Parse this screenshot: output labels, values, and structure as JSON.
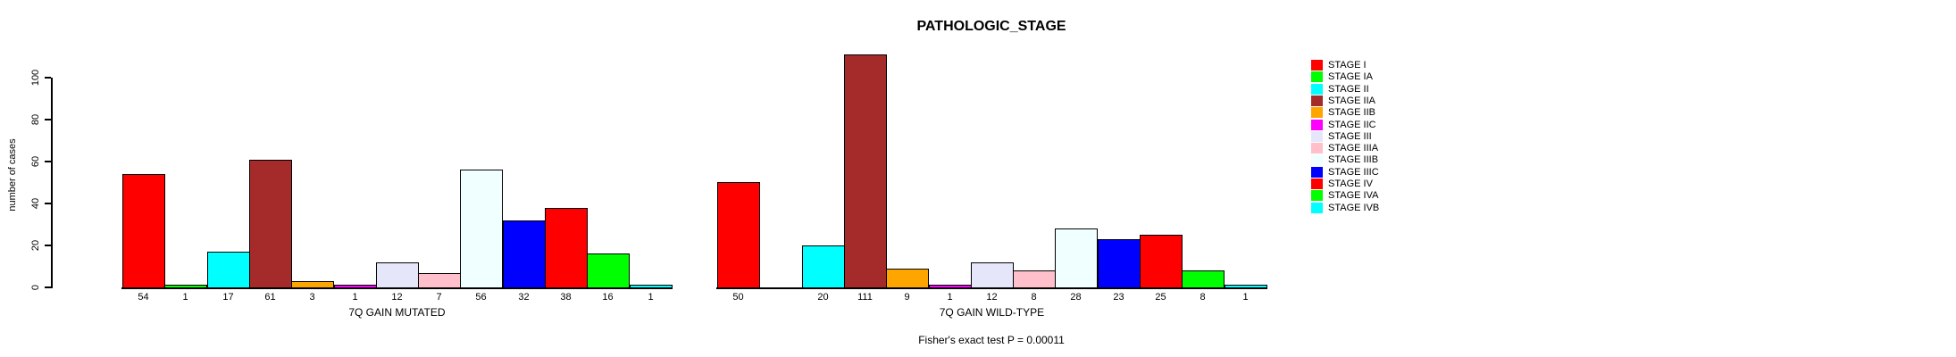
{
  "header": {
    "title": "PATHOLOGIC_STAGE"
  },
  "y_axis": {
    "label": "number of cases",
    "tick_labels": [
      "0",
      "20",
      "40",
      "60",
      "80",
      "100"
    ]
  },
  "footer": {
    "note": "Fisher's exact test P = 0.00011"
  },
  "legend": {
    "items": [
      {
        "label": "STAGE I",
        "color": "#FF0000"
      },
      {
        "label": "STAGE IA",
        "color": "#00FF00"
      },
      {
        "label": "STAGE II",
        "color": "#00FFFF"
      },
      {
        "label": "STAGE IIA",
        "color": "#A52A2A"
      },
      {
        "label": "STAGE IIB",
        "color": "#FFA500"
      },
      {
        "label": "STAGE IIC",
        "color": "#FF00FF"
      },
      {
        "label": "STAGE III",
        "color": "#E6E6FA"
      },
      {
        "label": "STAGE IIIA",
        "color": "#FFC0CB"
      },
      {
        "label": "STAGE IIIB",
        "color": "#F0FFFF"
      },
      {
        "label": "STAGE IIIC",
        "color": "#0000FF"
      },
      {
        "label": "STAGE IV",
        "color": "#FF0000"
      },
      {
        "label": "STAGE IVA",
        "color": "#00FF00"
      },
      {
        "label": "STAGE IVB",
        "color": "#00FFFF"
      }
    ]
  },
  "chart_data": {
    "type": "bar",
    "title": "PATHOLOGIC_STAGE",
    "xlabel": "",
    "ylabel": "number of cases",
    "ylim": [
      0,
      110
    ],
    "yticks": [
      0,
      20,
      40,
      60,
      80,
      100
    ],
    "grid": false,
    "legend_position": "right",
    "bar_values_shown_below_bars": true,
    "categories": [
      "STAGE I",
      "STAGE IA",
      "STAGE II",
      "STAGE IIA",
      "STAGE IIB",
      "STAGE IIC",
      "STAGE III",
      "STAGE IIIA",
      "STAGE IIIB",
      "STAGE IIIC",
      "STAGE IV",
      "STAGE IVA",
      "STAGE IVB"
    ],
    "colors": [
      "#FF0000",
      "#00FF00",
      "#00FFFF",
      "#A52A2A",
      "#FFA500",
      "#FF00FF",
      "#E6E6FA",
      "#FFC0CB",
      "#F0FFFF",
      "#0000FF",
      "#FF0000",
      "#00FF00",
      "#00FFFF"
    ],
    "series": [
      {
        "name": "7Q GAIN MUTATED",
        "values": [
          54,
          1,
          17,
          61,
          3,
          1,
          12,
          7,
          56,
          32,
          38,
          16,
          1
        ]
      },
      {
        "name": "7Q GAIN WILD-TYPE",
        "values": [
          50,
          null,
          20,
          111,
          9,
          1,
          12,
          8,
          28,
          23,
          25,
          8,
          1
        ]
      }
    ],
    "annotation": "Fisher's exact test P = 0.00011"
  }
}
